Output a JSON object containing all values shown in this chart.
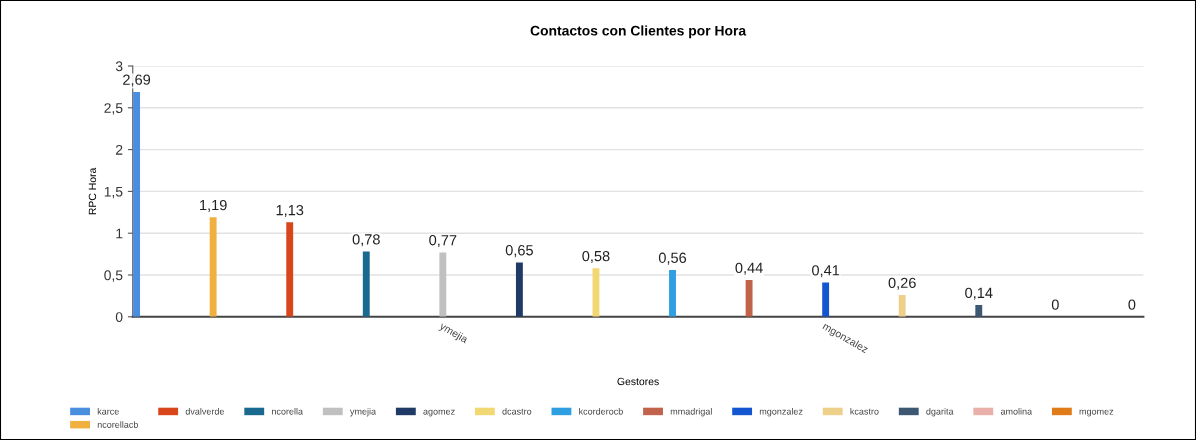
{
  "chart_data": {
    "type": "bar",
    "title": "Contactos con Clientes por Hora",
    "xlabel": "Gestores",
    "ylabel": "RPC Hora",
    "categories": [
      null,
      null,
      null,
      null,
      "ymejia",
      null,
      null,
      null,
      null,
      "mgonzalez",
      null,
      null,
      null,
      null
    ],
    "ylim": [
      0,
      3
    ],
    "yticks": [
      0,
      {
        "value": 0.5,
        "label": "0,5"
      },
      1,
      {
        "value": 1.5,
        "label": "1,5"
      },
      2,
      {
        "value": 2.5,
        "label": "2,5"
      },
      3
    ],
    "grid": "y",
    "legend": "bottom",
    "series": [
      {
        "name": "karce",
        "color": "#4a8ee0",
        "values": [
          2.69,
          null,
          null,
          null,
          null,
          null,
          null,
          null,
          null,
          null,
          null,
          null,
          null,
          null
        ],
        "value_labels": [
          "2,69",
          null,
          null,
          null,
          null,
          null,
          null,
          null,
          null,
          null,
          null,
          null,
          null,
          null
        ]
      },
      {
        "name": "dvalverde",
        "color": "#d9461b",
        "values": [
          null,
          null,
          1.13,
          null,
          null,
          null,
          null,
          null,
          null,
          null,
          null,
          null,
          null,
          null
        ],
        "value_labels": [
          null,
          null,
          "1,13",
          null,
          null,
          null,
          null,
          null,
          null,
          null,
          null,
          null,
          null,
          null
        ]
      },
      {
        "name": "ncorella",
        "color": "#1a6a8f",
        "values": [
          null,
          null,
          null,
          0.78,
          null,
          null,
          null,
          null,
          null,
          null,
          null,
          null,
          null,
          null
        ],
        "value_labels": [
          null,
          null,
          null,
          "0,78",
          null,
          null,
          null,
          null,
          null,
          null,
          null,
          null,
          null,
          null
        ]
      },
      {
        "name": "ymejia",
        "color": "#c0c0c0",
        "values": [
          null,
          null,
          null,
          null,
          0.77,
          null,
          null,
          null,
          null,
          null,
          null,
          null,
          null,
          null
        ],
        "value_labels": [
          null,
          null,
          null,
          null,
          "0,77",
          null,
          null,
          null,
          null,
          null,
          null,
          null,
          null,
          null
        ]
      },
      {
        "name": "agomez",
        "color": "#1f3a66",
        "values": [
          null,
          null,
          null,
          null,
          null,
          0.65,
          null,
          null,
          null,
          null,
          null,
          null,
          null,
          null
        ],
        "value_labels": [
          null,
          null,
          null,
          null,
          null,
          "0,65",
          null,
          null,
          null,
          null,
          null,
          null,
          null,
          null
        ]
      },
      {
        "name": "dcastro",
        "color": "#f2d873",
        "values": [
          null,
          null,
          null,
          null,
          null,
          null,
          0.58,
          null,
          null,
          null,
          null,
          null,
          null,
          null
        ],
        "value_labels": [
          null,
          null,
          null,
          null,
          null,
          null,
          "0,58",
          null,
          null,
          null,
          null,
          null,
          null,
          null
        ]
      },
      {
        "name": "kcorderocb",
        "color": "#2e9fe0",
        "values": [
          null,
          null,
          null,
          null,
          null,
          null,
          null,
          0.56,
          null,
          null,
          null,
          null,
          null,
          null
        ],
        "value_labels": [
          null,
          null,
          null,
          null,
          null,
          null,
          null,
          "0,56",
          null,
          null,
          null,
          null,
          null,
          null
        ]
      },
      {
        "name": "mmadrigal",
        "color": "#c0634a",
        "values": [
          null,
          null,
          null,
          null,
          null,
          null,
          null,
          null,
          0.44,
          null,
          null,
          null,
          null,
          null
        ],
        "value_labels": [
          null,
          null,
          null,
          null,
          null,
          null,
          null,
          null,
          "0,44",
          null,
          null,
          null,
          null,
          null
        ]
      },
      {
        "name": "mgonzalez",
        "color": "#1456d0",
        "values": [
          null,
          null,
          null,
          null,
          null,
          null,
          null,
          null,
          null,
          0.41,
          null,
          null,
          null,
          null
        ],
        "value_labels": [
          null,
          null,
          null,
          null,
          null,
          null,
          null,
          null,
          null,
          "0,41",
          null,
          null,
          null,
          null
        ]
      },
      {
        "name": "kcastro",
        "color": "#efd08a",
        "values": [
          null,
          null,
          null,
          null,
          null,
          null,
          null,
          null,
          null,
          null,
          0.26,
          null,
          null,
          null
        ],
        "value_labels": [
          null,
          null,
          null,
          null,
          null,
          null,
          null,
          null,
          null,
          null,
          "0,26",
          null,
          null,
          null
        ]
      },
      {
        "name": "dgarita",
        "color": "#3d5873",
        "values": [
          null,
          null,
          null,
          null,
          null,
          null,
          null,
          null,
          null,
          null,
          null,
          0.14,
          null,
          null
        ],
        "value_labels": [
          null,
          null,
          null,
          null,
          null,
          null,
          null,
          null,
          null,
          null,
          null,
          "0,14",
          null,
          null
        ]
      },
      {
        "name": "amolina",
        "color": "#e8b0a8",
        "values": [
          null,
          null,
          null,
          null,
          null,
          null,
          null,
          null,
          null,
          null,
          null,
          null,
          0,
          null
        ],
        "value_labels": [
          null,
          null,
          null,
          null,
          null,
          null,
          null,
          null,
          null,
          null,
          null,
          null,
          "0",
          null
        ]
      },
      {
        "name": "mgomez",
        "color": "#e07b1a",
        "values": [
          null,
          null,
          null,
          null,
          null,
          null,
          null,
          null,
          null,
          null,
          null,
          null,
          null,
          0
        ],
        "value_labels": [
          null,
          null,
          null,
          null,
          null,
          null,
          null,
          null,
          null,
          null,
          null,
          null,
          null,
          "0"
        ]
      },
      {
        "name": "ncorellacb",
        "color": "#f0b040",
        "values": [
          null,
          1.19,
          null,
          null,
          null,
          null,
          null,
          null,
          null,
          null,
          null,
          null,
          null,
          null
        ],
        "value_labels": [
          null,
          "1,19",
          null,
          null,
          null,
          null,
          null,
          null,
          null,
          null,
          null,
          null,
          null,
          null
        ]
      }
    ]
  }
}
